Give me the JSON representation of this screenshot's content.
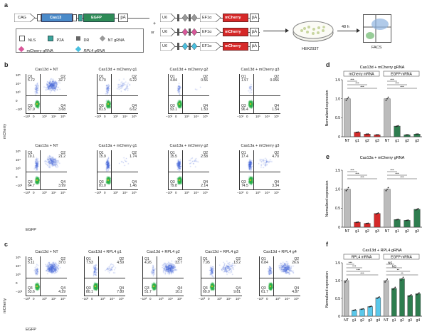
{
  "panel_a": {
    "letter": "a",
    "construct": {
      "cag": "CAG",
      "cas13": "Cas13",
      "egfp": "EGFP",
      "pa": "pA",
      "u6": "U6",
      "ef1a": "EF1α",
      "mcherry": "mCherry",
      "plus": "+",
      "or": "or"
    },
    "legend": {
      "nls": "NLS",
      "p2a": "P2A",
      "dr": "DR",
      "nt_grna": "NT gRNA",
      "mcherry_grna": "mCherry gRNA",
      "rpl4_grna": "RPL4 gRNA"
    },
    "cells": "HEK293T",
    "time": "48 h",
    "facs": "FACS"
  },
  "panel_b": {
    "letter": "b",
    "y_label": "mCherry",
    "x_label": "EGFP",
    "plots": [
      {
        "title": "Cas13d + NT",
        "q1": "5.72",
        "q2": "32.7",
        "q3": "57.9",
        "q4": "3.68"
      },
      {
        "title": "Cas13d + mCherry g1",
        "q1": "5.70",
        "q2": "6.22",
        "q3": "81.5",
        "q4": "6.62"
      },
      {
        "title": "Cas13d + mCherry g2",
        "q1": "4.84",
        "q2": "0.56",
        "q3": "93.1",
        "q4": "1.50"
      },
      {
        "title": "Cas13d + mCherry g3",
        "q1": "1.97",
        "q2": "0.056",
        "q3": "96.4",
        "q4": "1.54"
      },
      {
        "title": "Cas13a + NT",
        "q1": "10.1",
        "q2": "21.2",
        "q3": "64.7",
        "q4": "3.99"
      },
      {
        "title": "Cas13a + mCherry g1",
        "q1": "15.9",
        "q2": "1.74",
        "q3": "81.0",
        "q4": "1.46"
      },
      {
        "title": "Cas13a + mCherry g2",
        "q1": "15.5",
        "q2": "2.58",
        "q3": "79.8",
        "q4": "2.14"
      },
      {
        "title": "Cas13a + mCherry g3",
        "q1": "17.4",
        "q2": "4.70",
        "q3": "74.5",
        "q4": "3.34"
      }
    ]
  },
  "panel_c": {
    "letter": "c",
    "y_label": "mCherry",
    "x_label": "EGFP",
    "plots": [
      {
        "title": "Cas13d + NT",
        "q1": "5.11",
        "q2": "37.0",
        "q3": "53.6",
        "q4": "4.29"
      },
      {
        "title": "Cas13d + RPL4 g1",
        "q1": "7.53",
        "q2": "4.59",
        "q3": "80.1",
        "q4": "7.80"
      },
      {
        "title": "Cas13d + RPL4 g2",
        "q1": "4.26",
        "q2": "33.7",
        "q3": "51.7",
        "q4": "10.3"
      },
      {
        "title": "Cas13d + RPL4 g3",
        "q1": "7.95",
        "q2": "13.2",
        "q3": "69.0",
        "q4": "9.81"
      },
      {
        "title": "Cas13d + RPL4 g4",
        "q1": "6.84",
        "q2": "26.6",
        "q3": "61.7",
        "q4": "4.87"
      }
    ]
  },
  "ticks": {
    "x": [
      "−10³",
      "0",
      "10³",
      "10⁴",
      "10⁵"
    ],
    "y": [
      "10⁵",
      "10⁴",
      "10³",
      "0",
      "−10³"
    ]
  },
  "chart_data": [
    {
      "panel": "d",
      "type": "bar",
      "title": "Cas13d + mCherry gRNA",
      "ylabel": "Normalized expression",
      "ylim": [
        0,
        1.5
      ],
      "yticks": [
        "0",
        "0.5",
        "1.0",
        "1.5"
      ],
      "groups": [
        "mCherry mRNA",
        "EGFP mRNA"
      ],
      "categories": [
        "NT",
        "g1",
        "g2",
        "g3",
        "NT",
        "g1",
        "g2",
        "g3"
      ],
      "values": [
        1.0,
        0.12,
        0.07,
        0.05,
        1.0,
        0.28,
        0.05,
        0.07
      ],
      "colors": [
        "#bbbbbb",
        "#d42a2a",
        "#d42a2a",
        "#d42a2a",
        "#bbbbbb",
        "#2e7d4f",
        "#2e7d4f",
        "#2e7d4f"
      ],
      "sig": [
        "***",
        "***",
        "***",
        "***",
        "***",
        "***"
      ]
    },
    {
      "panel": "e",
      "type": "bar",
      "title": "Cas13a + mCherry gRNA",
      "ylabel": "Normalized expression",
      "ylim": [
        0,
        1.5
      ],
      "yticks": [
        "0",
        "0.5",
        "1.0",
        "1.5"
      ],
      "categories": [
        "NT",
        "g1",
        "g2",
        "g3",
        "NT",
        "g1",
        "g2",
        "g3"
      ],
      "values": [
        1.0,
        0.13,
        0.1,
        0.36,
        1.0,
        0.2,
        0.18,
        0.47
      ],
      "colors": [
        "#bbbbbb",
        "#d42a2a",
        "#d42a2a",
        "#d42a2a",
        "#bbbbbb",
        "#2e7d4f",
        "#2e7d4f",
        "#2e7d4f"
      ],
      "sig": [
        "***",
        "***",
        "***",
        "***",
        "***",
        "***"
      ]
    },
    {
      "panel": "f",
      "type": "bar",
      "title": "Cas13d + RPL4 gRNA",
      "ylabel": "Normalized expression",
      "ylim": [
        0,
        1.5
      ],
      "yticks": [
        "0",
        "0.5",
        "1.0",
        "1.5"
      ],
      "groups": [
        "RPL4 mRNA",
        "EGFP mRNA"
      ],
      "categories": [
        "NT",
        "g1",
        "g2",
        "g3",
        "g4",
        "NT",
        "g1",
        "g2",
        "g3",
        "g4"
      ],
      "values": [
        1.0,
        0.17,
        0.2,
        0.27,
        0.52,
        1.0,
        0.78,
        1.05,
        0.58,
        0.63
      ],
      "colors": [
        "#bbbbbb",
        "#5bc8ea",
        "#5bc8ea",
        "#5bc8ea",
        "#5bc8ea",
        "#bbbbbb",
        "#2e7d4f",
        "#2e7d4f",
        "#2e7d4f",
        "#2e7d4f"
      ],
      "sig": [
        "***",
        "***",
        "***",
        "***",
        "NS",
        "NS",
        "**",
        "**"
      ]
    }
  ]
}
